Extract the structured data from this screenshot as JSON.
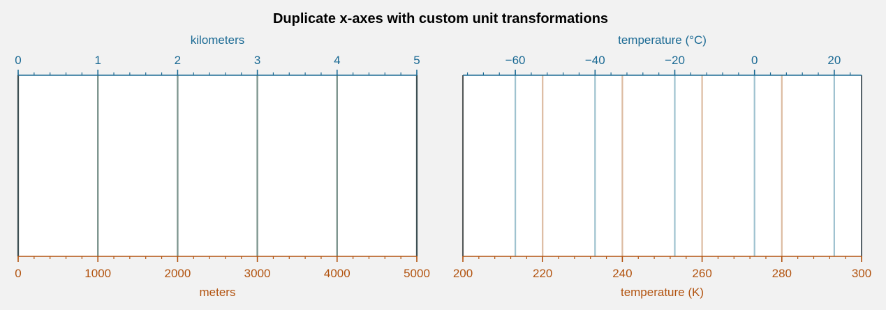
{
  "figure": {
    "title": "Duplicate x-axes with custom unit transformations"
  },
  "colors": {
    "background": "#f2f2f2",
    "panel": "#ffffff",
    "frame": "#2f3e46",
    "top_axis": "#1b6a94",
    "bottom_axis": "#b2530f",
    "left_lines": "#7f9690",
    "right_top_lines": "#9fc2cf",
    "right_bottom_lines": "#dcbba1"
  },
  "chart_data": [
    {
      "type": "line",
      "panel": "left",
      "title": "",
      "xlabel": "meters",
      "secondary_xlabel": "kilometers",
      "xlim": [
        0,
        5000
      ],
      "secondary_xlim": [
        0,
        5
      ],
      "grid": false,
      "x_ticks": [
        0,
        1000,
        2000,
        3000,
        4000,
        5000
      ],
      "x_tick_labels": [
        "0",
        "1000",
        "2000",
        "3000",
        "4000",
        "5000"
      ],
      "x_minor_step": 200,
      "secondary_x_ticks": [
        0,
        1,
        2,
        3,
        4,
        5
      ],
      "secondary_x_tick_labels": [
        "0",
        "1",
        "2",
        "3",
        "4",
        "5"
      ],
      "secondary_x_minor_step": 0.2,
      "vertical_lines": [
        0,
        1000,
        2000,
        3000,
        4000,
        5000
      ]
    },
    {
      "type": "line",
      "panel": "right",
      "title": "",
      "xlabel": "temperature (K)",
      "secondary_xlabel": "temperature (°C)",
      "xlim": [
        200,
        300
      ],
      "secondary_xlim": [
        -73.15,
        26.85
      ],
      "grid": false,
      "x_ticks": [
        200,
        220,
        240,
        260,
        280,
        300
      ],
      "x_tick_labels": [
        "200",
        "220",
        "240",
        "260",
        "280",
        "300"
      ],
      "x_minor_step": 4,
      "secondary_x_ticks": [
        -60,
        -40,
        -20,
        0,
        20
      ],
      "secondary_x_tick_labels": [
        "−60",
        "−40",
        "−20",
        "0",
        "20"
      ],
      "secondary_x_minor_step": 4,
      "vertical_lines_bottom_axis": [
        200,
        220,
        240,
        260,
        280
      ],
      "vertical_lines_top_axis": [
        -60,
        -40,
        -20,
        0,
        20
      ]
    }
  ]
}
